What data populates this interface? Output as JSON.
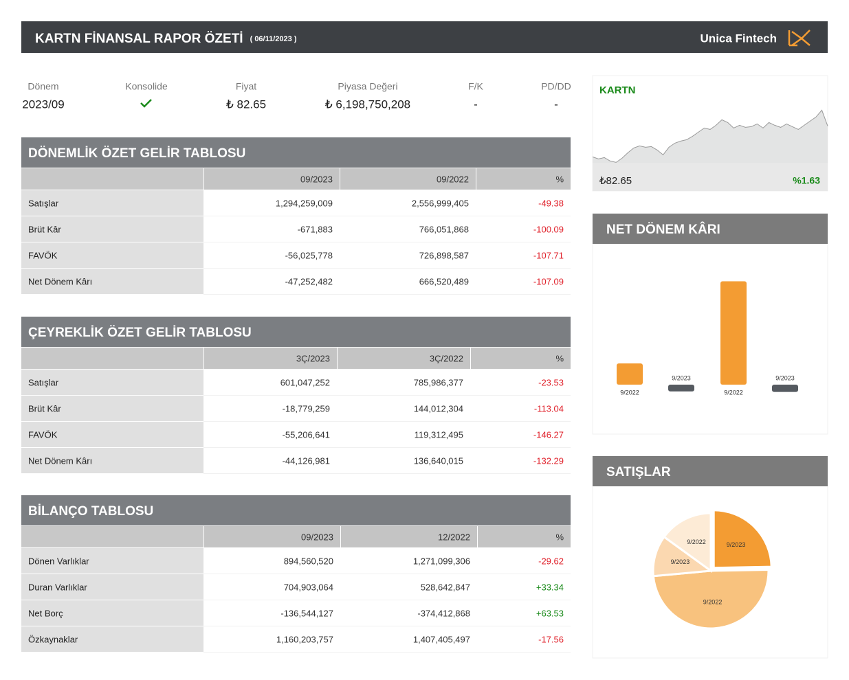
{
  "header": {
    "title": "KARTN FİNANSAL RAPOR ÖZETİ",
    "date": "( 06/11/2023 )",
    "brand": "Unica Fintech"
  },
  "summary": [
    {
      "label": "Dönem",
      "value": "2023/09"
    },
    {
      "label": "Konsolide"
    },
    {
      "label": "Fiyat",
      "value": "₺ 82.65"
    },
    {
      "label": "Piyasa Değeri",
      "value": "₺ 6,198,750,208"
    },
    {
      "label": "F/K",
      "value": "-"
    },
    {
      "label": "PD/DD",
      "value": "-"
    }
  ],
  "tables": [
    {
      "title": "DÖNEMLİK ÖZET GELİR TABLOSU",
      "columns": [
        "09/2023",
        "09/2022",
        "%"
      ],
      "rows": [
        [
          "Satışlar",
          "1,294,259,009",
          "2,556,999,405",
          "-49.38"
        ],
        [
          "Brüt Kâr",
          "-671,883",
          "766,051,868",
          "-100.09"
        ],
        [
          "FAVÖK",
          "-56,025,778",
          "726,898,587",
          "-107.71"
        ],
        [
          "Net Dönem Kârı",
          "-47,252,482",
          "666,520,489",
          "-107.09"
        ]
      ]
    },
    {
      "title": "ÇEYREKLİK ÖZET GELİR TABLOSU",
      "columns": [
        "3Ç/2023",
        "3Ç/2022",
        "%"
      ],
      "rows": [
        [
          "Satışlar",
          "601,047,252",
          "785,986,377",
          "-23.53"
        ],
        [
          "Brüt Kâr",
          "-18,779,259",
          "144,012,304",
          "-113.04"
        ],
        [
          "FAVÖK",
          "-55,206,641",
          "119,312,495",
          "-146.27"
        ],
        [
          "Net Dönem Kârı",
          "-44,126,981",
          "136,640,015",
          "-132.29"
        ]
      ]
    },
    {
      "title": "BİLANÇO TABLOSU",
      "columns": [
        "09/2023",
        "12/2022",
        "%"
      ],
      "rows": [
        [
          "Dönen Varlıklar",
          "894,560,520",
          "1,271,099,306",
          "-29.62"
        ],
        [
          "Duran Varlıklar",
          "704,903,064",
          "528,642,847",
          "+33.34"
        ],
        [
          "Net Borç",
          "-136,544,127",
          "-374,412,868",
          "+63.53"
        ],
        [
          "Özkaynaklar",
          "1,160,203,757",
          "1,407,405,497",
          "-17.56"
        ]
      ]
    }
  ],
  "chart_data": [
    {
      "type": "line",
      "title": "KARTN",
      "price": "₺82.65",
      "change": "%1.63",
      "color": "#9a9a9a",
      "values": [
        71.4,
        70.65,
        71.15,
        69.9,
        69.4,
        70.9,
        72.9,
        74.65,
        75.4,
        74.9,
        75.15,
        73.9,
        72.15,
        74.9,
        76.4,
        77.15,
        77.65,
        78.9,
        80.4,
        81.9,
        81.4,
        82.9,
        84.9,
        83.9,
        81.9,
        82.9,
        82.15,
        82.4,
        83.4,
        81.9,
        83.9,
        82.9,
        82.15,
        83.4,
        82.4,
        81.4,
        82.9,
        84.4,
        85.9,
        88.4,
        82.65
      ],
      "ylim": [
        65,
        92
      ]
    },
    {
      "type": "bar",
      "title": "NET DÖNEM KÂRI",
      "categories": [
        "9/2022",
        "9/2023",
        "9/2022",
        "9/2023"
      ],
      "values": [
        136640015,
        -44126981,
        666520489,
        -47252482
      ],
      "colors": [
        "#f39c33",
        "#555a60",
        "#f39c33",
        "#555a60"
      ],
      "ylim": [
        -80000000,
        700000000
      ]
    },
    {
      "type": "pie",
      "title": "SATIŞLAR",
      "categories": [
        "9/2023",
        "9/2022",
        "9/2023",
        "9/2022"
      ],
      "values": [
        1294259009,
        2556999405,
        601047252,
        785986377
      ],
      "colors": [
        "#f39c33",
        "#f8c27e",
        "#fbd8b0",
        "#fdebd6"
      ]
    }
  ]
}
